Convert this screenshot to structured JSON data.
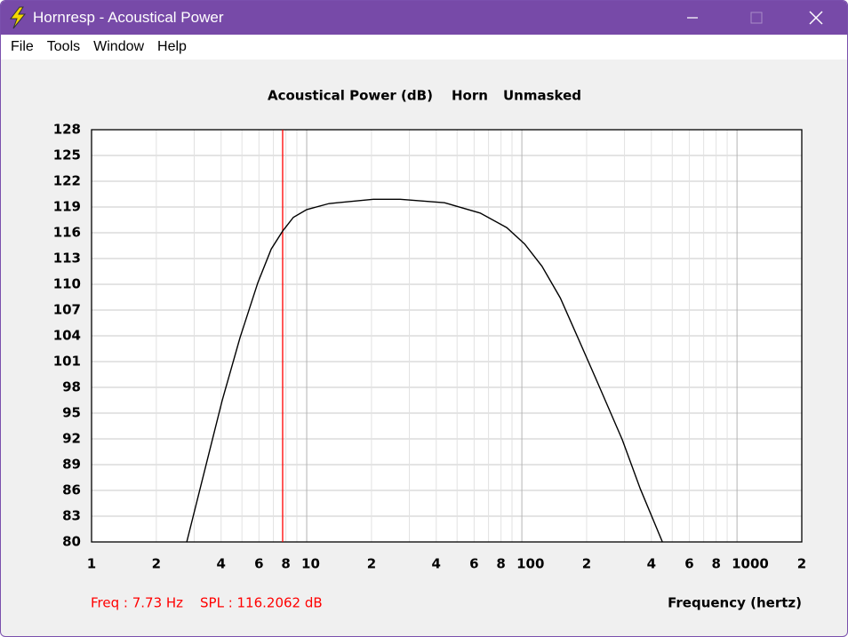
{
  "window": {
    "title": "Hornresp - Acoustical Power",
    "menu": [
      "File",
      "Tools",
      "Window",
      "Help"
    ]
  },
  "chart_data": {
    "type": "line",
    "title": [
      "Acoustical Power (dB)",
      "Horn",
      "Unmasked"
    ],
    "x_label": "Frequency (hertz)",
    "xscale": "log",
    "xlim": [
      1,
      2000
    ],
    "ylim": [
      80,
      128
    ],
    "yticks": [
      80,
      83,
      86,
      89,
      92,
      95,
      98,
      101,
      104,
      107,
      110,
      113,
      116,
      119,
      122,
      125,
      128
    ],
    "xticks": [
      1,
      2,
      4,
      6,
      8,
      10,
      {
        "value": 20,
        "label": "2"
      },
      {
        "value": 40,
        "label": "4"
      },
      {
        "value": 60,
        "label": "6"
      },
      {
        "value": 80,
        "label": "8"
      },
      100,
      {
        "value": 200,
        "label": "2"
      },
      {
        "value": 400,
        "label": "4"
      },
      {
        "value": 600,
        "label": "6"
      },
      {
        "value": 800,
        "label": "8"
      },
      1000,
      {
        "value": 2000,
        "label": "2"
      }
    ],
    "xgrid": [
      3,
      5,
      7,
      9,
      30,
      50,
      70,
      90,
      300,
      500,
      700,
      900
    ],
    "grid": true,
    "series": [
      {
        "color": "#000000",
        "x": [
          2.77,
          4.05,
          4.9,
          5.93,
          6.84,
          7.73,
          8.67,
          10,
          12.7,
          20.4,
          27.2,
          43.7,
          64,
          85.1,
          103,
          124,
          151,
          182,
          220,
          293,
          355,
          450
        ],
        "values": [
          80,
          96.5,
          103.8,
          110.2,
          114.1,
          116.2,
          117.8,
          118.7,
          119.4,
          119.9,
          119.9,
          119.5,
          118.3,
          116.6,
          114.7,
          112.1,
          108.4,
          103.8,
          99.1,
          91.9,
          86.2,
          80
        ]
      }
    ],
    "cursor": {
      "x": 7.73,
      "x_label": "Freq : 7.73 Hz",
      "y": 116.2062,
      "y_label": "SPL : 116.2062 dB",
      "color": "#ff0000"
    }
  }
}
